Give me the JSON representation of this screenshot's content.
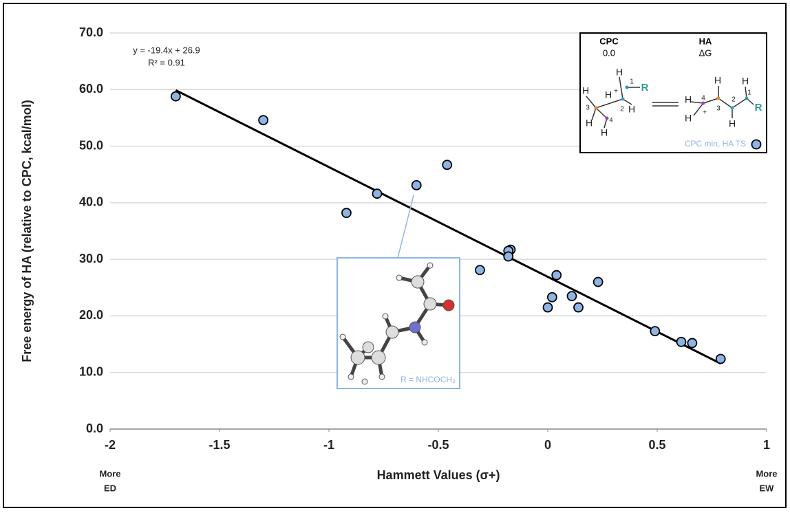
{
  "chart_data": {
    "type": "scatter",
    "y_label": "Free energy of HA (relative to CPC, kcal/mol)",
    "x_label": "Hammett Values (σ+)",
    "corner_labels": {
      "left": [
        "More",
        "ED"
      ],
      "right": [
        "More",
        "EW"
      ]
    },
    "xlim": [
      -2,
      1
    ],
    "xticks": [
      -2,
      -1.5,
      -1,
      -0.5,
      0,
      0.5,
      1
    ],
    "ylim": [
      0,
      70
    ],
    "yticks": [
      {
        "value": 0,
        "label": "0.0"
      },
      {
        "value": 10,
        "label": "10.0"
      },
      {
        "value": 20,
        "label": "20.0"
      },
      {
        "value": 30,
        "label": "30.0"
      },
      {
        "value": 40,
        "label": "40.0"
      },
      {
        "value": 50,
        "label": "50.0"
      },
      {
        "value": 60,
        "label": "60.0"
      },
      {
        "value": 70,
        "label": "70.0"
      }
    ],
    "grid": true,
    "series": [
      {
        "name": "CPC min, HA TS",
        "color": "#8eb4e3",
        "x": [
          -1.7,
          -1.3,
          -0.92,
          -0.78,
          -0.6,
          -0.46,
          -0.31,
          -0.17,
          -0.18,
          -0.18,
          0.0,
          0.02,
          0.04,
          0.11,
          0.14,
          0.23,
          0.49,
          0.61,
          0.66,
          0.79
        ],
        "values": [
          58.8,
          54.6,
          38.2,
          41.6,
          43.1,
          46.7,
          28.1,
          31.7,
          31.5,
          30.5,
          21.5,
          23.3,
          27.2,
          23.5,
          21.5,
          26.0,
          17.3,
          15.4,
          15.2,
          12.4
        ]
      }
    ],
    "trendline": {
      "slope": -19.4,
      "intercept": 26.9,
      "label": "y = -19.4x + 26.9",
      "r2_label": "R² = 0.91"
    },
    "inset": {
      "label": "R = NHCOCH₃",
      "point_index": 4
    },
    "reaction_scheme": {
      "reactant_title": "CPC",
      "reactant_energy": "0.0",
      "product_title": "HA",
      "product_energy": "ΔG",
      "reactant_atoms": [
        "H",
        "1",
        "R",
        "H",
        "H",
        "+",
        "3",
        "2",
        "H",
        "H",
        "4",
        "H"
      ],
      "product_atoms": [
        "H",
        "H",
        "H",
        "4",
        "3",
        "2",
        "1",
        "R",
        "H",
        "+",
        "H"
      ]
    }
  }
}
